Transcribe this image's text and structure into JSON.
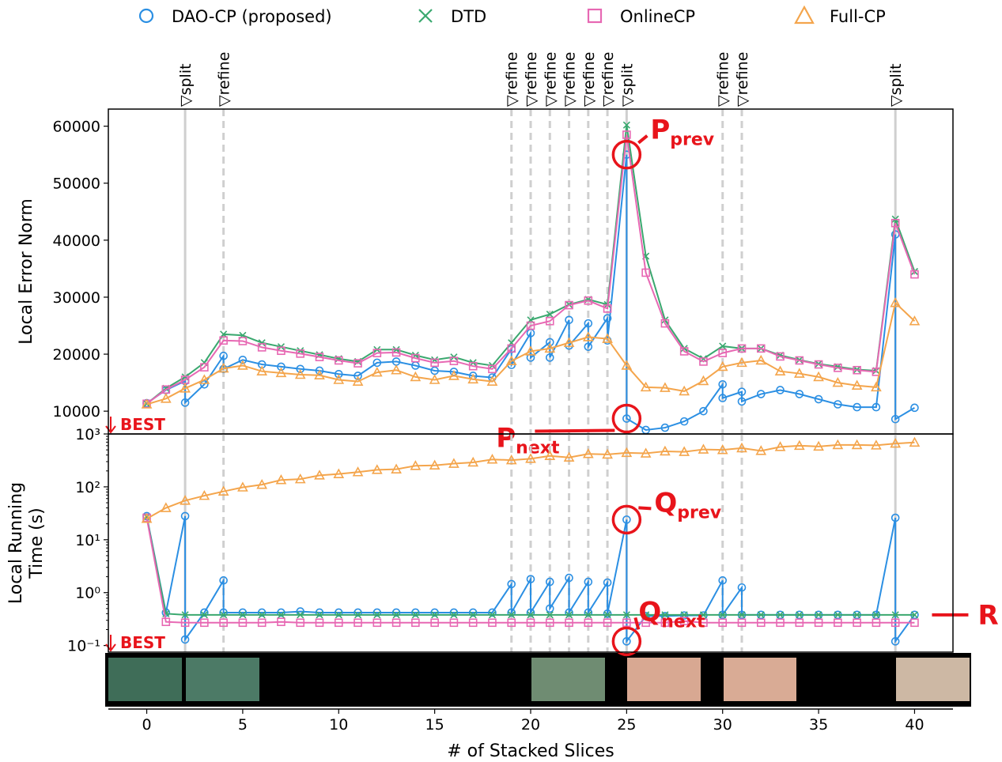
{
  "chart_data": [
    {
      "type": "line",
      "ylabel": [
        "Local Error Norm"
      ],
      "best_label": "BEST",
      "x": [
        0,
        1,
        2,
        3,
        4,
        5,
        6,
        7,
        8,
        9,
        10,
        11,
        12,
        13,
        14,
        15,
        16,
        17,
        18,
        19,
        20,
        21,
        22,
        23,
        24,
        25,
        26,
        27,
        28,
        29,
        30,
        31,
        32,
        33,
        34,
        35,
        36,
        37,
        38,
        39,
        40
      ],
      "xlim": [
        -2,
        42
      ],
      "ylim": [
        6000,
        63000
      ],
      "yticks": [
        10000,
        20000,
        30000,
        40000,
        50000,
        60000
      ],
      "events": [
        {
          "x": 2,
          "label": "▽split"
        },
        {
          "x": 4,
          "label": "▽refine"
        },
        {
          "x": 19,
          "label": "▽refine"
        },
        {
          "x": 20,
          "label": "▽refine"
        },
        {
          "x": 21,
          "label": "▽refine"
        },
        {
          "x": 22,
          "label": "▽refine"
        },
        {
          "x": 23,
          "label": "▽refine"
        },
        {
          "x": 24,
          "label": "▽refine"
        },
        {
          "x": 25,
          "label": "▽split"
        },
        {
          "x": 30,
          "label": "▽refine"
        },
        {
          "x": 31,
          "label": "▽refine"
        },
        {
          "x": 39,
          "label": "▽split"
        }
      ],
      "annotations": [
        {
          "text": "P",
          "sub": "prev",
          "x": 25,
          "y": 55000,
          "circled": true
        },
        {
          "text": "P",
          "sub": "next",
          "x": 25,
          "y": 8700,
          "circled": true
        }
      ],
      "series": [
        {
          "name": "DAO-CP (proposed)",
          "color": "#2b8fe3",
          "marker": "circle",
          "x": [
            0,
            1,
            2,
            2,
            3,
            4,
            4,
            5,
            6,
            7,
            8,
            9,
            10,
            11,
            12,
            13,
            14,
            15,
            16,
            17,
            18,
            19,
            19,
            20,
            20,
            21,
            21,
            22,
            22,
            23,
            23,
            24,
            24,
            25,
            25,
            26,
            27,
            28,
            29,
            30,
            30,
            31,
            31,
            32,
            33,
            34,
            35,
            36,
            37,
            38,
            39,
            39,
            40
          ],
          "values": [
            11400,
            13700,
            15300,
            11500,
            14700,
            19700,
            17400,
            19000,
            18200,
            17800,
            17400,
            17100,
            16500,
            16200,
            18500,
            18700,
            18000,
            17100,
            16900,
            16200,
            15900,
            20900,
            18100,
            23700,
            19400,
            22100,
            19400,
            26000,
            21500,
            25400,
            21300,
            26300,
            22400,
            55000,
            8700,
            6700,
            7100,
            8200,
            10000,
            14700,
            12300,
            13400,
            11700,
            13000,
            13700,
            13000,
            12100,
            11200,
            10700,
            10700,
            41000,
            8600,
            10600
          ]
        },
        {
          "name": "DTD",
          "color": "#3aa86f",
          "marker": "x",
          "values": [
            11300,
            14000,
            16000,
            18500,
            23500,
            23300,
            22000,
            21300,
            20600,
            19900,
            19200,
            18700,
            20800,
            20800,
            19800,
            19000,
            19500,
            18500,
            18000,
            22000,
            26000,
            27000,
            28700,
            29600,
            28700,
            60200,
            37200,
            26000,
            21000,
            19200,
            21400,
            21000,
            21000,
            19800,
            19000,
            18300,
            17800,
            17300,
            17100,
            43700,
            34500
          ]
        },
        {
          "name": "OnlineCP",
          "color": "#e768b3",
          "marker": "square",
          "values": [
            11300,
            13800,
            15500,
            17700,
            22400,
            22300,
            21200,
            20600,
            20100,
            19500,
            18900,
            18400,
            20200,
            20300,
            19300,
            18500,
            18800,
            17900,
            17400,
            21000,
            25000,
            25800,
            28600,
            29400,
            28000,
            58500,
            34300,
            25400,
            20500,
            18700,
            20200,
            21000,
            21000,
            19600,
            18900,
            18200,
            17600,
            17200,
            16900,
            43000,
            34000
          ]
        },
        {
          "name": "Full-CP",
          "color": "#f4a54c",
          "marker": "triangle",
          "values": [
            11200,
            12200,
            14000,
            15500,
            17500,
            18000,
            17000,
            16700,
            16400,
            16300,
            15500,
            15200,
            16800,
            17200,
            16000,
            15500,
            16200,
            15600,
            15200,
            18800,
            20500,
            21000,
            22000,
            23000,
            22700,
            18000,
            14200,
            14100,
            13500,
            15300,
            17800,
            18500,
            18900,
            17000,
            16600,
            16000,
            15000,
            14500,
            14200,
            29000,
            25800
          ]
        }
      ]
    },
    {
      "type": "line",
      "ylabel": [
        "Local Running",
        "Time (s)"
      ],
      "best_label": "BEST",
      "log_scale": true,
      "xlabel": "# of Stacked Slices",
      "x": [
        0,
        1,
        2,
        3,
        4,
        5,
        6,
        7,
        8,
        9,
        10,
        11,
        12,
        13,
        14,
        15,
        16,
        17,
        18,
        19,
        20,
        21,
        22,
        23,
        24,
        25,
        26,
        27,
        28,
        29,
        30,
        31,
        32,
        33,
        34,
        35,
        36,
        37,
        38,
        39,
        40
      ],
      "xlim": [
        -2,
        42
      ],
      "xticks": [
        0,
        5,
        10,
        15,
        20,
        25,
        30,
        35,
        40
      ],
      "ylim": [
        0.075,
        1000
      ],
      "yticks": [
        {
          "value": 0.1,
          "label": "10⁻¹"
        },
        {
          "value": 1,
          "label": "10⁰"
        },
        {
          "value": 10,
          "label": "10¹"
        },
        {
          "value": 100,
          "label": "10²"
        },
        {
          "value": 1000,
          "label": "10³"
        }
      ],
      "annotations": [
        {
          "text": "Q",
          "sub": "prev",
          "x": 25,
          "y": 24,
          "circled": true
        },
        {
          "text": "Q",
          "sub": "next",
          "x": 25,
          "y": 0.12,
          "circled": true
        },
        {
          "text": "R",
          "x": 40,
          "y": 0.38,
          "circled": false
        }
      ],
      "series": [
        {
          "color": "#2b8fe3",
          "marker": "circle",
          "x": [
            0,
            1,
            2,
            2,
            3,
            4,
            4,
            5,
            6,
            7,
            8,
            9,
            10,
            11,
            12,
            13,
            14,
            15,
            16,
            17,
            18,
            19,
            19,
            20,
            20,
            21,
            21,
            22,
            22,
            23,
            23,
            24,
            24,
            25,
            25,
            26,
            27,
            28,
            29,
            30,
            30,
            31,
            31,
            32,
            33,
            34,
            35,
            36,
            37,
            38,
            39,
            39,
            40
          ],
          "values": [
            28,
            0.42,
            28,
            0.13,
            0.42,
            1.7,
            0.42,
            0.42,
            0.42,
            0.42,
            0.44,
            0.42,
            0.42,
            0.42,
            0.42,
            0.42,
            0.42,
            0.42,
            0.42,
            0.42,
            0.42,
            1.45,
            0.42,
            1.8,
            0.42,
            1.6,
            0.5,
            1.9,
            0.42,
            1.6,
            0.42,
            1.55,
            0.4,
            24,
            0.12,
            0.36,
            0.36,
            0.37,
            0.37,
            1.7,
            0.38,
            1.25,
            0.38,
            0.38,
            0.38,
            0.38,
            0.38,
            0.38,
            0.38,
            0.38,
            26,
            0.12,
            0.38
          ]
        },
        {
          "color": "#3aa86f",
          "marker": "x",
          "values": [
            27,
            0.4,
            0.38,
            0.38,
            0.38,
            0.38,
            0.38,
            0.38,
            0.38,
            0.38,
            0.38,
            0.38,
            0.38,
            0.38,
            0.38,
            0.38,
            0.38,
            0.38,
            0.38,
            0.38,
            0.38,
            0.38,
            0.38,
            0.38,
            0.38,
            0.38,
            0.38,
            0.38,
            0.38,
            0.38,
            0.38,
            0.38,
            0.38,
            0.38,
            0.38,
            0.38,
            0.38,
            0.38,
            0.38,
            0.38,
            0.38
          ]
        },
        {
          "color": "#e768b3",
          "marker": "square",
          "values": [
            26,
            0.28,
            0.27,
            0.27,
            0.27,
            0.27,
            0.27,
            0.28,
            0.27,
            0.27,
            0.27,
            0.27,
            0.27,
            0.27,
            0.27,
            0.27,
            0.27,
            0.27,
            0.27,
            0.27,
            0.27,
            0.27,
            0.27,
            0.27,
            0.27,
            0.27,
            0.27,
            0.27,
            0.29,
            0.27,
            0.27,
            0.27,
            0.27,
            0.27,
            0.27,
            0.27,
            0.27,
            0.27,
            0.27,
            0.27,
            0.27
          ]
        },
        {
          "color": "#f4a54c",
          "marker": "triangle",
          "values": [
            25,
            40,
            55,
            68,
            82,
            98,
            110,
            135,
            140,
            165,
            175,
            190,
            210,
            215,
            250,
            255,
            275,
            290,
            330,
            320,
            340,
            385,
            360,
            420,
            410,
            440,
            430,
            470,
            460,
            510,
            500,
            540,
            480,
            570,
            600,
            580,
            620,
            620,
            610,
            660,
            690
          ]
        }
      ]
    }
  ]
}
